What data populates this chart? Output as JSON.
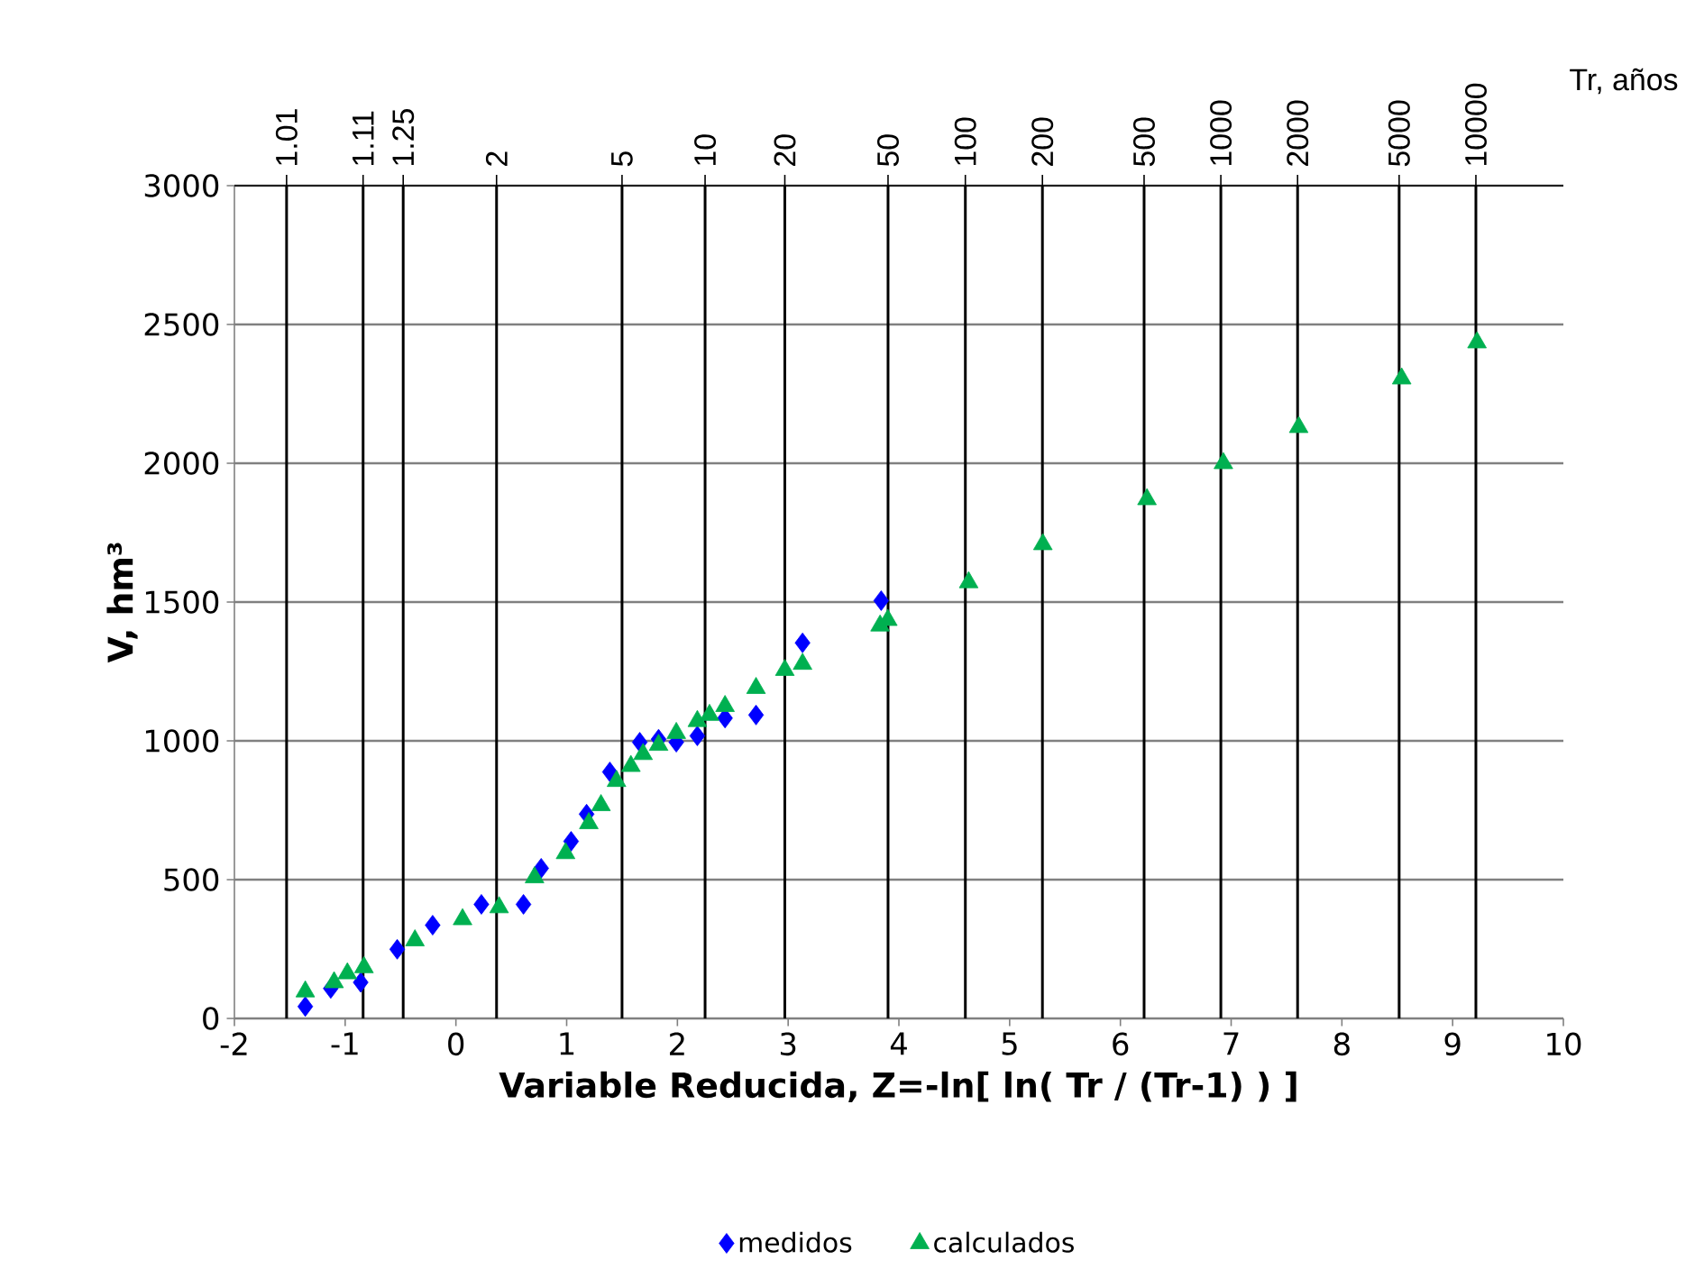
{
  "chart_data": {
    "type": "scatter",
    "xlabel": "Variable Reducida, Z=-ln[ ln( Tr / (Tr-1) ) ]",
    "ylabel": "V, hm³",
    "annotations": [
      "Tr, años",
      {
        "text": "1.01",
        "x": -1.529,
        "y": 3000
      },
      {
        "text": "1.11",
        "x": -0.838,
        "y": 3000
      },
      {
        "text": "1.25",
        "x": -0.476,
        "y": 3000
      },
      {
        "text": "2",
        "x": 0.367,
        "y": 3000
      },
      {
        "text": "5",
        "x": 1.5,
        "y": 3000
      },
      {
        "text": "10",
        "x": 2.25,
        "y": 3000
      },
      {
        "text": "20",
        "x": 2.97,
        "y": 3000
      },
      {
        "text": "50",
        "x": 3.902,
        "y": 3000
      },
      {
        "text": "100",
        "x": 4.6,
        "y": 3000
      },
      {
        "text": "200",
        "x": 5.296,
        "y": 3000
      },
      {
        "text": "500",
        "x": 6.214,
        "y": 3000
      },
      {
        "text": "1000",
        "x": 6.907,
        "y": 3000
      },
      {
        "text": "2000",
        "x": 7.6,
        "y": 3000
      },
      {
        "text": "5000",
        "x": 8.517,
        "y": 3000
      },
      {
        "text": "10000",
        "x": 9.21,
        "y": 3000
      }
    ],
    "xlim": [
      -2,
      10
    ],
    "xticks": [
      -2,
      -1,
      0,
      1,
      2,
      3,
      4,
      5,
      6,
      7,
      8,
      9,
      10
    ],
    "ylim": [
      0,
      3000
    ],
    "yticks": [
      0,
      500,
      1000,
      1500,
      2000,
      2500,
      3000
    ],
    "grid": "y",
    "legend": "bottom",
    "series": [
      {
        "name": "medidos",
        "color": "#0000ff",
        "marker": "diamond",
        "x": [
          -1.36,
          -1.13,
          -0.86,
          -0.53,
          -0.21,
          0.23,
          0.61,
          0.77,
          1.04,
          1.18,
          1.39,
          1.66,
          1.83,
          1.99,
          2.18,
          2.43,
          2.71,
          3.13,
          3.84
        ],
        "values": [
          43,
          108,
          130,
          249,
          336,
          411,
          411,
          541,
          638,
          736,
          888,
          995,
          1006,
          995,
          1018,
          1082,
          1093,
          1353,
          1505
        ]
      },
      {
        "name": "calculados",
        "color": "#00b050",
        "marker": "triangle",
        "x": [
          -1.36,
          -1.1,
          -0.98,
          -0.83,
          -0.37,
          0.06,
          0.39,
          0.71,
          0.99,
          1.2,
          1.31,
          1.45,
          1.58,
          1.69,
          1.83,
          1.99,
          2.18,
          2.29,
          2.43,
          2.71,
          2.97,
          3.13,
          3.83,
          3.9,
          4.63,
          5.3,
          6.24,
          6.93,
          7.61,
          8.54,
          9.22
        ],
        "values": [
          97,
          130,
          162,
          184,
          281,
          357,
          400,
          508,
          595,
          703,
          768,
          855,
          909,
          952,
          985,
          1028,
          1071,
          1093,
          1125,
          1190,
          1255,
          1277,
          1415,
          1435,
          1571,
          1708,
          1870,
          2000,
          2130,
          2305,
          2435
        ]
      }
    ],
    "ref_lines": [
      {
        "axis": "x",
        "value": -1.529,
        "color": "#000000"
      },
      {
        "axis": "x",
        "value": -0.838,
        "color": "#000000"
      },
      {
        "axis": "x",
        "value": -0.476,
        "color": "#000000"
      },
      {
        "axis": "x",
        "value": 0.367,
        "color": "#000000"
      },
      {
        "axis": "x",
        "value": 1.5,
        "color": "#000000"
      },
      {
        "axis": "x",
        "value": 2.25,
        "color": "#000000"
      },
      {
        "axis": "x",
        "value": 2.97,
        "color": "#000000"
      },
      {
        "axis": "x",
        "value": 3.902,
        "color": "#000000"
      },
      {
        "axis": "x",
        "value": 4.6,
        "color": "#000000"
      },
      {
        "axis": "x",
        "value": 5.296,
        "color": "#000000"
      },
      {
        "axis": "x",
        "value": 6.214,
        "color": "#000000"
      },
      {
        "axis": "x",
        "value": 6.907,
        "color": "#000000"
      },
      {
        "axis": "x",
        "value": 7.6,
        "color": "#000000"
      },
      {
        "axis": "x",
        "value": 8.517,
        "color": "#000000"
      },
      {
        "axis": "x",
        "value": 9.21,
        "color": "#000000"
      }
    ]
  }
}
